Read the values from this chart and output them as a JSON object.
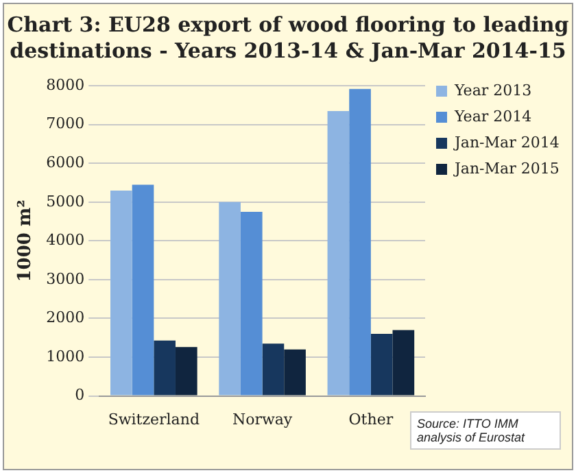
{
  "chart_data": {
    "type": "bar",
    "title": "Chart 3: EU28 export of wood flooring to leading destinations - Years 2013-14 & Jan-Mar 2014-15",
    "ylabel": "1000 m²",
    "categories": [
      "Switzerland",
      "Norway",
      "Other"
    ],
    "series": [
      {
        "name": "Year 2013",
        "color": "#8db4e2",
        "values": [
          5300,
          5000,
          7350
        ]
      },
      {
        "name": "Year 2014",
        "color": "#558ed5",
        "values": [
          5450,
          4750,
          7920
        ]
      },
      {
        "name": "Jan-Mar 2014",
        "color": "#17375e",
        "values": [
          1430,
          1350,
          1600
        ]
      },
      {
        "name": "Jan-Mar 2015",
        "color": "#10253f",
        "values": [
          1260,
          1200,
          1700
        ]
      }
    ],
    "ylim": [
      0,
      8000
    ],
    "yticks": [
      0,
      1000,
      2000,
      3000,
      4000,
      5000,
      6000,
      7000,
      8000
    ],
    "grid": "y",
    "legend": "right",
    "annotations": [
      "Source: ITTO IMM analysis of Eurostat"
    ]
  }
}
